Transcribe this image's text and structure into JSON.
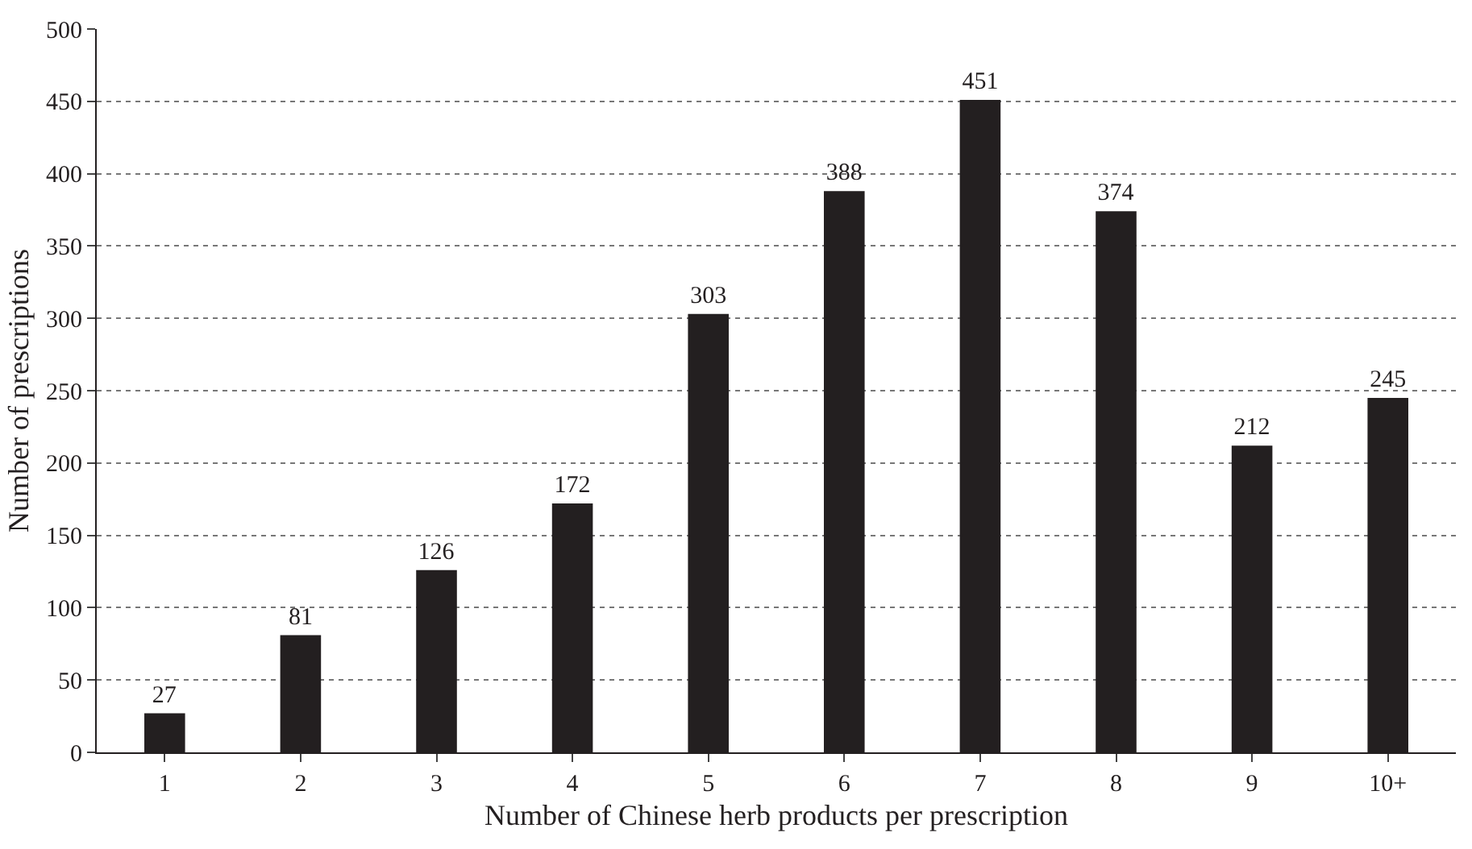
{
  "chart_data": {
    "type": "bar",
    "xlabel": "Number of Chinese herb products per prescription",
    "ylabel": "Number of prescriptions",
    "categories": [
      "1",
      "2",
      "3",
      "4",
      "5",
      "6",
      "7",
      "8",
      "9",
      "10+"
    ],
    "values": [
      27,
      81,
      126,
      172,
      303,
      388,
      451,
      374,
      212,
      245
    ],
    "color": "#231f20",
    "ylim": [
      0,
      500
    ],
    "yticks": [
      0,
      50,
      100,
      150,
      200,
      250,
      300,
      350,
      400,
      450,
      500
    ],
    "grid": "y",
    "data_labels": true,
    "legend": false
  }
}
